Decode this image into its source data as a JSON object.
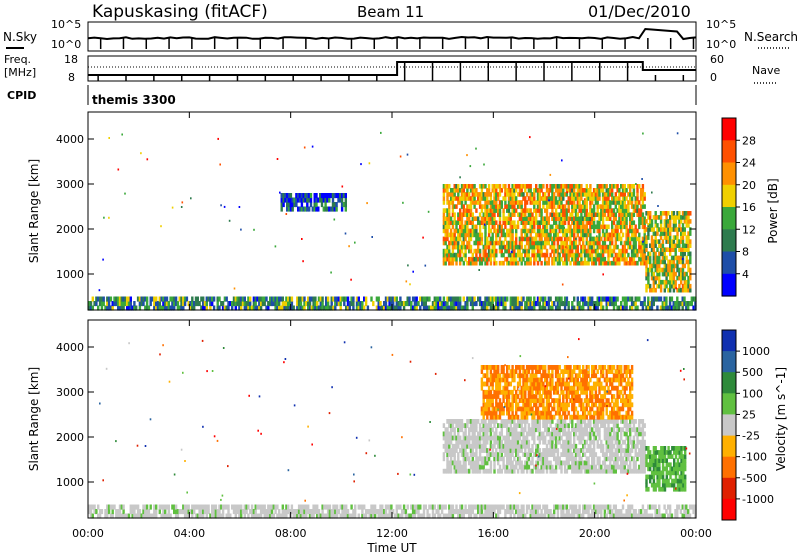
{
  "header": {
    "station": "Kapuskasing (fitACF)",
    "beam": "Beam 11",
    "date": "01/Dec/2010"
  },
  "side_labels": {
    "nsky": "N.Sky",
    "nsky_top": "10^5",
    "nsky_bottom": "10^0",
    "freq_line1": "Freq.",
    "freq_line2": "[MHz]",
    "freq_top": "18",
    "freq_bottom": "8",
    "cpid": "CPID",
    "nsearch": "N.Search",
    "nsearch_top": "10^5",
    "nsearch_bottom": "10^0",
    "nave": "Nave",
    "nave_top": "60",
    "nave_bottom": "0"
  },
  "mode_label": "themis 3300",
  "x_axis": {
    "label": "Time UT",
    "ticks": [
      "00:00",
      "04:00",
      "08:00",
      "12:00",
      "16:00",
      "20:00",
      "00:00"
    ]
  },
  "chart_data": [
    {
      "type": "heatmap",
      "name": "power",
      "ylabel": "Slant Range [km]",
      "xlabel": "",
      "xlim_hours": [
        0,
        24
      ],
      "ylim": [
        200,
        4600
      ],
      "yticks": [
        "1000",
        "2000",
        "3000",
        "4000"
      ],
      "colorbar": {
        "label": "Power [dB]",
        "ticks": [
          "4",
          "8",
          "12",
          "16",
          "20",
          "24",
          "28"
        ],
        "range": [
          0,
          30
        ]
      },
      "regions": [
        {
          "t_start": 14.0,
          "t_end": 22.0,
          "range_low": 1200,
          "range_high": 3000,
          "value_dB": 18
        },
        {
          "t_start": 22.0,
          "t_end": 23.8,
          "range_low": 600,
          "range_high": 2400,
          "value_dB": 16
        },
        {
          "t_start": 7.6,
          "t_end": 10.2,
          "range_low": 2400,
          "range_high": 2800,
          "value_dB": 6
        },
        {
          "t_start": 0.0,
          "t_end": 24.0,
          "range_low": 200,
          "range_high": 500,
          "value_dB": 10
        }
      ]
    },
    {
      "type": "heatmap",
      "name": "velocity",
      "ylabel": "Slant Range [km]",
      "xlabel": "Time UT",
      "xlim_hours": [
        0,
        24
      ],
      "ylim": [
        200,
        4600
      ],
      "yticks": [
        "1000",
        "2000",
        "3000",
        "4000"
      ],
      "colorbar": {
        "label": "Velocity [m s^-1]",
        "ticks": [
          "1000",
          "500",
          "100",
          "25",
          "-25",
          "-100",
          "-500",
          "-1000"
        ]
      },
      "regions": [
        {
          "t_start": 14.0,
          "t_end": 22.0,
          "range_low": 1200,
          "range_high": 2400,
          "velocity": 0
        },
        {
          "t_start": 15.5,
          "t_end": 21.5,
          "range_low": 2400,
          "range_high": 3600,
          "velocity": -150
        },
        {
          "t_start": 22.0,
          "t_end": 23.6,
          "range_low": 800,
          "range_high": 1800,
          "velocity": 200
        },
        {
          "t_start": 0.0,
          "t_end": 24.0,
          "range_low": 200,
          "range_high": 500,
          "velocity": 0
        }
      ]
    }
  ],
  "colors": {
    "power_scale": [
      "#0000ff",
      "#1e4ea8",
      "#2e7b4e",
      "#3aa83a",
      "#f0d000",
      "#ff9000",
      "#ff5000",
      "#ff0000"
    ],
    "velocity_scale": [
      "#1030b0",
      "#2a64a0",
      "#2e8a3a",
      "#60c040",
      "#c8c8c8",
      "#ffb000",
      "#ff7000",
      "#e02000",
      "#ff0000"
    ]
  }
}
